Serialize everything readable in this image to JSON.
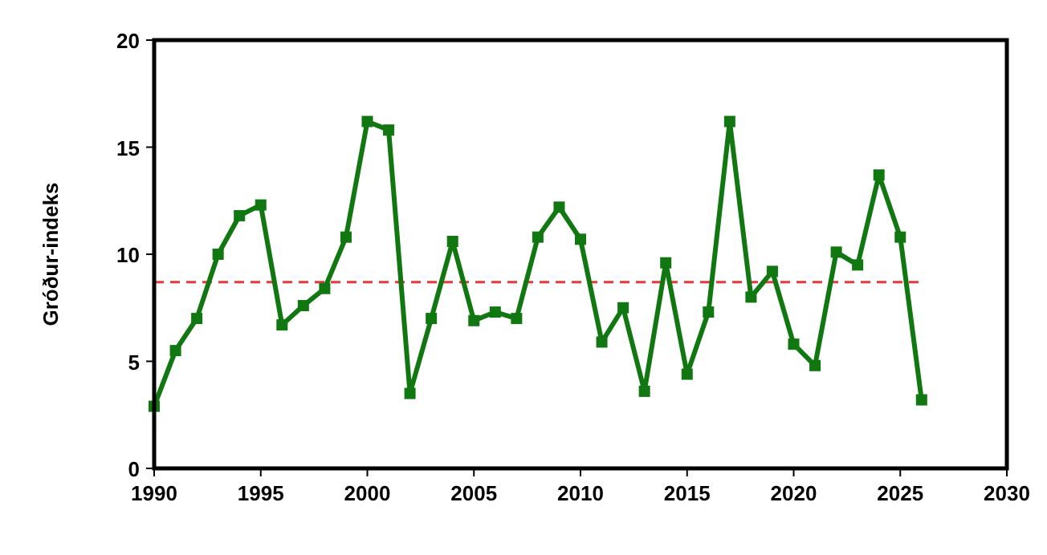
{
  "chart_data": {
    "type": "line",
    "ylabel": "Gróður-indeks",
    "x": [
      1990,
      1991,
      1992,
      1993,
      1994,
      1995,
      1996,
      1997,
      1998,
      1999,
      2000,
      2001,
      2002,
      2003,
      2004,
      2005,
      2006,
      2007,
      2008,
      2009,
      2010,
      2011,
      2012,
      2013,
      2014,
      2015,
      2016,
      2017,
      2018,
      2019,
      2020,
      2021,
      2022,
      2023,
      2024,
      2025,
      2026
    ],
    "series": [
      {
        "color": "#117711",
        "values": [
          2.9,
          5.5,
          7.0,
          10.0,
          11.8,
          12.3,
          6.7,
          7.6,
          8.4,
          10.8,
          16.2,
          15.8,
          3.5,
          7.0,
          10.6,
          6.9,
          7.3,
          7.0,
          10.8,
          12.2,
          10.7,
          5.9,
          7.5,
          3.6,
          9.6,
          4.4,
          7.3,
          16.2,
          8.0,
          9.2,
          5.8,
          4.8,
          10.1,
          9.5,
          13.7,
          10.8,
          3.2
        ]
      }
    ],
    "xlim": [
      1990,
      2030
    ],
    "xticks": [
      1990,
      1995,
      2000,
      2005,
      2010,
      2015,
      2020,
      2025,
      2030
    ],
    "ylim": [
      0,
      20
    ],
    "yticks": [
      0,
      5,
      10,
      15,
      20
    ],
    "ref_lines": [
      {
        "axis": "y",
        "value": 8.7,
        "color": "#e8383a",
        "line_style": "dashed"
      }
    ],
    "marker": "square",
    "line_style": "solid"
  }
}
